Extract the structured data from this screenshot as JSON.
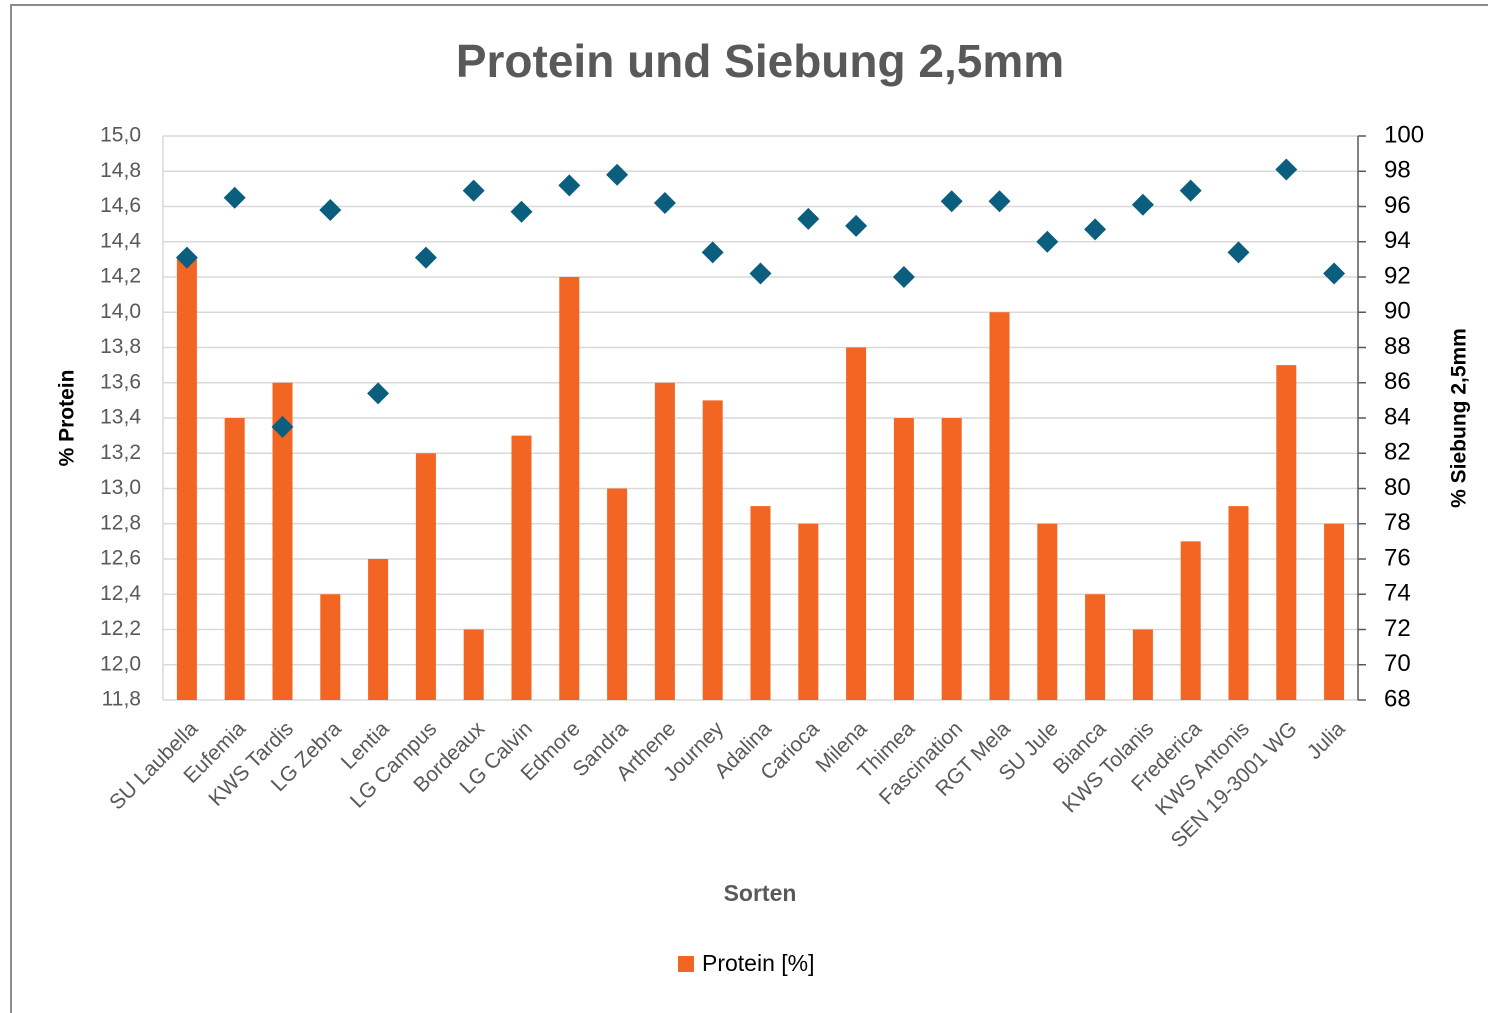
{
  "chart_data": {
    "type": "bar",
    "title": "Protein und Siebung 2,5mm",
    "xlabel": "Sorten",
    "ylabel": "% Protein",
    "y2label": "% Siebung 2,5mm",
    "categories": [
      "SU Laubella",
      "Eufemia",
      "KWS Tardis",
      "LG Zebra",
      "Lentia",
      "LG Campus",
      "Bordeaux",
      "LG Calvin",
      "Edmore",
      "Sandra",
      "Arthene",
      "Journey",
      "Adalina",
      "Carioca",
      "Milena",
      "Thimea",
      "Fascination",
      "RGT Mela",
      "SU Jule",
      "Bianca",
      "KWS Tolanis",
      "Frederica",
      "KWS Antonis",
      "SEN 19-3001 WG",
      "Julia"
    ],
    "series": [
      {
        "name": "Protein [%]",
        "type": "bar",
        "color": "#f26522",
        "values": [
          14.3,
          13.4,
          13.6,
          12.4,
          12.6,
          13.2,
          12.2,
          13.3,
          14.2,
          13.0,
          13.6,
          13.5,
          12.9,
          12.8,
          13.8,
          13.4,
          13.4,
          14.0,
          12.8,
          12.4,
          12.2,
          12.7,
          12.9,
          13.7,
          12.8
        ]
      },
      {
        "type": "scatter",
        "marker": "diamond",
        "axis": "y2",
        "color": "#0b5e7e",
        "values": [
          93.1,
          96.5,
          83.5,
          95.8,
          85.4,
          93.1,
          96.9,
          95.7,
          97.2,
          97.8,
          96.2,
          93.4,
          92.2,
          95.3,
          94.9,
          92.0,
          96.3,
          96.3,
          94.0,
          94.7,
          96.1,
          96.9,
          93.4,
          98.1,
          92.2
        ]
      }
    ],
    "ylim": [
      11.8,
      15.0
    ],
    "yticks": [
      {
        "value": 11.8,
        "label": "11,8"
      },
      {
        "value": 12.0,
        "label": "12,0"
      },
      {
        "value": 12.2,
        "label": "12,2"
      },
      {
        "value": 12.4,
        "label": "12,4"
      },
      {
        "value": 12.6,
        "label": "12,6"
      },
      {
        "value": 12.8,
        "label": "12,8"
      },
      {
        "value": 13.0,
        "label": "13,0"
      },
      {
        "value": 13.2,
        "label": "13,2"
      },
      {
        "value": 13.4,
        "label": "13,4"
      },
      {
        "value": 13.6,
        "label": "13,6"
      },
      {
        "value": 13.8,
        "label": "13,8"
      },
      {
        "value": 14.0,
        "label": "14,0"
      },
      {
        "value": 14.2,
        "label": "14,2"
      },
      {
        "value": 14.4,
        "label": "14,4"
      },
      {
        "value": 14.6,
        "label": "14,6"
      },
      {
        "value": 14.8,
        "label": "14,8"
      },
      {
        "value": 15.0,
        "label": "15,0"
      }
    ],
    "y2lim": [
      68,
      100
    ],
    "y2ticks": [
      68,
      70,
      72,
      74,
      76,
      78,
      80,
      82,
      84,
      86,
      88,
      90,
      92,
      94,
      96,
      98,
      100
    ],
    "grid": true,
    "legend": "bottom"
  }
}
